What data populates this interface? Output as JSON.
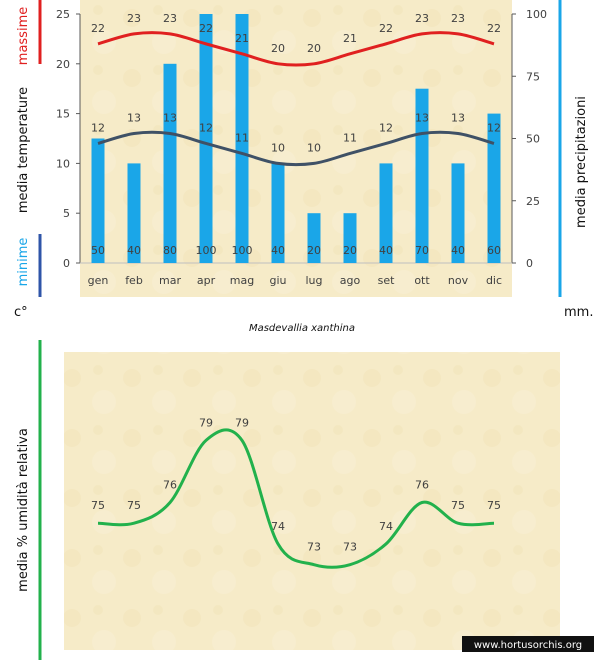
{
  "chart_data": [
    {
      "type": "bar",
      "categories": [
        "gen",
        "feb",
        "mar",
        "apr",
        "mag",
        "giu",
        "lug",
        "ago",
        "set",
        "ott",
        "nov",
        "dic"
      ],
      "series": [
        {
          "name": "media precipitazioni",
          "axis": "right",
          "values": [
            50,
            40,
            80,
            100,
            100,
            40,
            20,
            20,
            40,
            70,
            40,
            60
          ]
        },
        {
          "name": "massime",
          "kind": "line",
          "axis": "left",
          "values": [
            22,
            23,
            23,
            22,
            21,
            20,
            20,
            21,
            22,
            23,
            23,
            22
          ]
        },
        {
          "name": "minime",
          "kind": "line",
          "axis": "left",
          "values": [
            12,
            13,
            13,
            12,
            11,
            10,
            10,
            11,
            12,
            13,
            13,
            12
          ]
        }
      ],
      "ylabel": "media  temperature",
      "y2label": "media  precipitazioni",
      "ylim": [
        0,
        25
      ],
      "yticks": [
        0,
        5,
        10,
        15,
        20,
        25
      ],
      "y2lim": [
        0,
        100
      ],
      "y2ticks": [
        0,
        25,
        50,
        75,
        100
      ],
      "max_label": "massime",
      "min_label": "minime",
      "unit_left": "c°",
      "unit_right": "mm.",
      "title": "Masdevallia xanthina",
      "colors": {
        "bars": "#1aa6e8",
        "max": "#e02020",
        "min": "#3f5166",
        "bg": "#f6ebc8",
        "humidity": "#22b14c"
      }
    },
    {
      "type": "line",
      "categories": [
        "gen",
        "feb",
        "mar",
        "apr",
        "mag",
        "giu",
        "lug",
        "ago",
        "set",
        "ott",
        "nov",
        "dic"
      ],
      "series": [
        {
          "name": "media % umidità relativa",
          "values": [
            75,
            75,
            76,
            79,
            79,
            74,
            73,
            73,
            74,
            76,
            75,
            75
          ]
        }
      ],
      "ylabel": "media %  umidità relativa"
    }
  ],
  "watermark": "www.hortusorchis.org"
}
